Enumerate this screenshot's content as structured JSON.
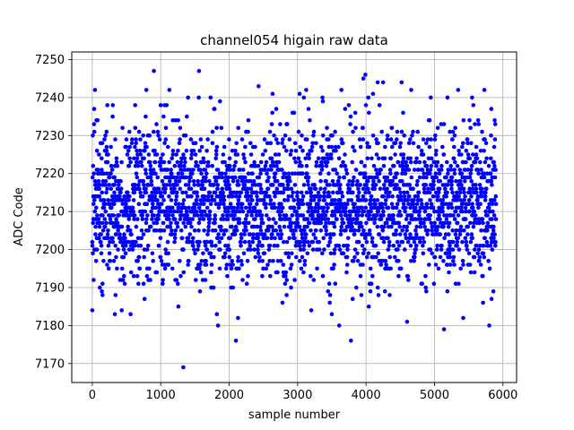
{
  "chart_data": {
    "type": "scatter",
    "title": "channel054 higain raw data",
    "xlabel": "sample number",
    "ylabel": "ADC Code",
    "xlim": [
      -300,
      6200
    ],
    "ylim": [
      7165,
      7252
    ],
    "x_ticks": [
      0,
      1000,
      2000,
      3000,
      4000,
      5000,
      6000
    ],
    "y_ticks": [
      7170,
      7180,
      7190,
      7200,
      7210,
      7220,
      7230,
      7240,
      7250
    ],
    "grid": true,
    "marker_color": "#0000ff",
    "series": [
      {
        "n_points": 5900,
        "x_range": [
          0,
          5900
        ],
        "center": 7212,
        "typical_range": [
          7192,
          7232
        ],
        "x": [
          0,
          30,
          60,
          150,
          210,
          330,
          560,
          790,
          900,
          1000,
          1330,
          1400,
          1560,
          1780,
          1820,
          2100,
          2130,
          2430,
          2600,
          2780,
          3030,
          3160,
          3200,
          3370,
          3470,
          3500,
          3640,
          3780,
          3810,
          3960,
          3990,
          4040,
          4170,
          4250,
          4520,
          4600,
          4660,
          4880,
          5140,
          5190,
          5420,
          5550,
          5730,
          5800,
          5830,
          5880
        ],
        "y": [
          7184,
          7231,
          7234,
          7188,
          7227,
          7183,
          7183,
          7242,
          7247,
          7238,
          7169,
          7240,
          7247,
          7237,
          7183,
          7176,
          7182,
          7243,
          7193,
          7186,
          7241,
          7237,
          7184,
          7239,
          7186,
          7183,
          7242,
          7176,
          7231,
          7245,
          7246,
          7185,
          7244,
          7244,
          7244,
          7181,
          7242,
          7189,
          7179,
          7240,
          7182,
          7240,
          7242,
          7180,
          7237,
          7234
        ]
      }
    ]
  }
}
